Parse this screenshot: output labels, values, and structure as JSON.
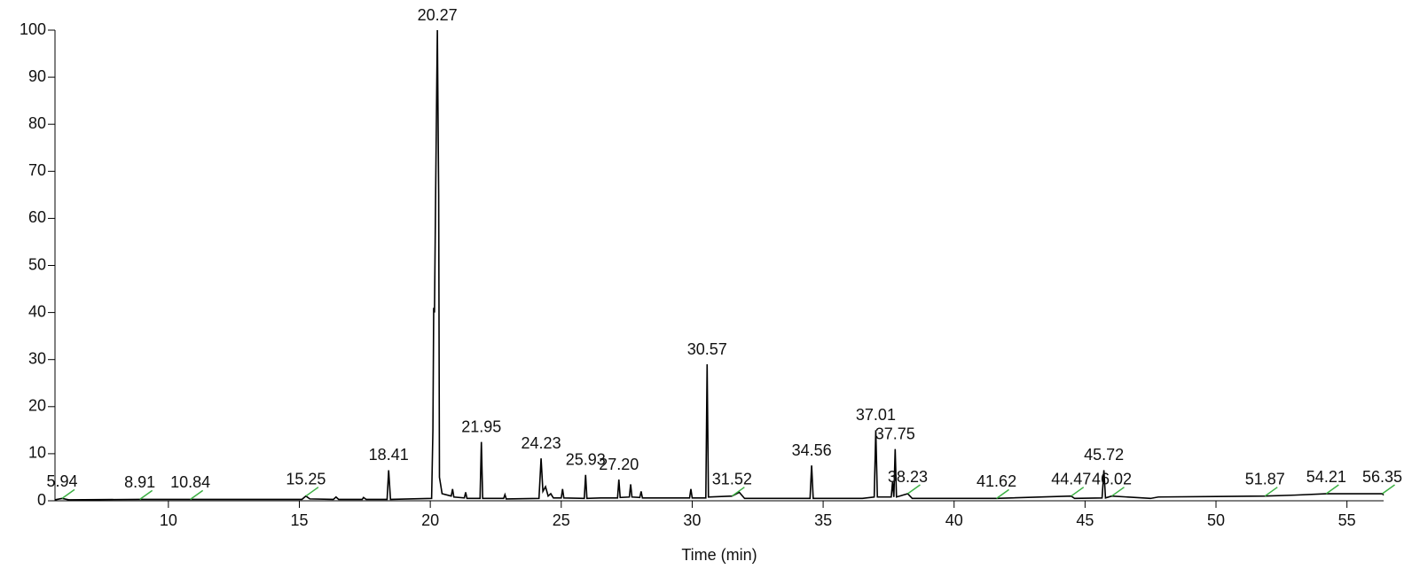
{
  "chart_data": {
    "type": "line",
    "x_label": "Time (min)",
    "x": [
      5.67,
      5.94,
      6.2,
      8.91,
      10.84,
      15.1,
      15.25,
      15.4,
      16.3,
      16.4,
      16.5,
      17.4,
      17.45,
      17.55,
      18.35,
      18.41,
      18.48,
      20.05,
      20.1,
      20.13,
      20.16,
      20.2,
      20.25,
      20.27,
      20.32,
      20.35,
      20.45,
      20.8,
      20.85,
      20.9,
      21.3,
      21.35,
      21.4,
      21.9,
      21.95,
      22.0,
      22.8,
      22.85,
      22.9,
      24.15,
      24.23,
      24.3,
      24.4,
      24.5,
      24.6,
      24.7,
      25.0,
      25.05,
      25.1,
      25.88,
      25.93,
      25.98,
      26.5,
      27.15,
      27.2,
      27.25,
      27.6,
      27.65,
      27.7,
      28.0,
      28.05,
      28.1,
      29.9,
      29.95,
      30.0,
      30.52,
      30.57,
      30.62,
      31.52,
      31.8,
      32.0,
      34.5,
      34.56,
      34.62,
      36.5,
      36.95,
      37.01,
      37.07,
      37.6,
      37.65,
      37.7,
      37.75,
      37.8,
      38.23,
      38.4,
      41.62,
      44.47,
      44.6,
      45.65,
      45.72,
      45.78,
      46.02,
      47.5,
      47.8,
      50.0,
      51.87,
      53.0,
      54.21,
      56.35,
      56.4
    ],
    "values": [
      0.2,
      0.5,
      0.2,
      0.3,
      0.3,
      0.3,
      1.0,
      0.4,
      0.3,
      0.8,
      0.3,
      0.3,
      0.7,
      0.3,
      0.3,
      6.5,
      0.3,
      0.5,
      15,
      41,
      40,
      63,
      90,
      100,
      65,
      5,
      1.5,
      1.0,
      2.5,
      0.8,
      0.6,
      1.8,
      0.5,
      0.5,
      12.5,
      0.5,
      0.5,
      1.3,
      0.4,
      0.5,
      9,
      2,
      3,
      1,
      1.5,
      0.6,
      0.6,
      2.5,
      0.6,
      0.5,
      5.5,
      0.5,
      0.6,
      0.6,
      4.5,
      0.7,
      0.8,
      3.5,
      0.8,
      0.7,
      2,
      0.6,
      0.6,
      2.5,
      0.6,
      0.6,
      29,
      0.8,
      1,
      1.8,
      0.5,
      0.5,
      7.5,
      0.5,
      0.5,
      0.8,
      15,
      0.8,
      0.8,
      4,
      0.8,
      11,
      0.8,
      1.5,
      0.5,
      0.5,
      1,
      0.5,
      0.6,
      6.5,
      0.6,
      1,
      0.5,
      0.8,
      0.9,
      1,
      1.2,
      1.5,
      1.5,
      1.2
    ],
    "color": "#000000",
    "peak_labels": {
      "x": [
        5.94,
        8.91,
        10.84,
        15.25,
        18.41,
        20.27,
        21.95,
        24.23,
        25.93,
        27.2,
        30.57,
        31.52,
        34.56,
        37.01,
        37.75,
        38.23,
        41.62,
        44.47,
        45.72,
        46.02,
        51.87,
        54.21,
        56.35
      ],
      "y": [
        0.5,
        0.3,
        0.3,
        1.0,
        6.5,
        100,
        12.5,
        9,
        5.5,
        4.5,
        29,
        1,
        7.5,
        15,
        11,
        1.5,
        0.5,
        1,
        6.5,
        1,
        1,
        1.5,
        1.5
      ],
      "value_labels": [
        "5.94",
        "8.91",
        "10.84",
        "15.25",
        "18.41",
        "20.27",
        "21.95",
        "24.23",
        "25.93",
        "27.20",
        "30.57",
        "31.52",
        "34.56",
        "37.01",
        "37.75",
        "38.23",
        "41.62",
        "44.47",
        "45.72",
        "46.02",
        "51.87",
        "54.21",
        "56.35"
      ]
    },
    "xlim": [
      5.67,
      56.4
    ],
    "ylim": [
      0,
      100
    ],
    "xticks": [
      10,
      15,
      20,
      25,
      30,
      35,
      40,
      45,
      50,
      55
    ],
    "yticks": [
      0,
      10,
      20,
      30,
      40,
      50,
      60,
      70,
      80,
      90,
      100
    ]
  }
}
